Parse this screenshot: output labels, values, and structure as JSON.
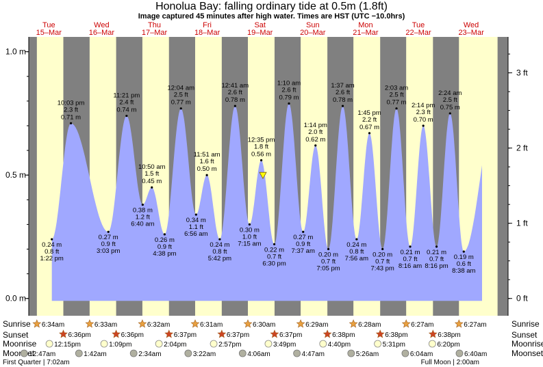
{
  "title": "Honolua Bay: falling  ordinary tide at 0.5m (1.8ft)",
  "subtitle": "Image captured 45 minutes after high water. Times are HST (UTC −10.0hrs)",
  "chart_data": {
    "type": "area",
    "title": "Honolua Bay: falling  ordinary tide at 0.5m (1.8ft)",
    "xlabel": "",
    "ylabel": "",
    "ylim": [
      -0.07,
      1.06
    ],
    "y_left_ticks": [
      {
        "value": 0.0,
        "label": "0.0 m"
      },
      {
        "value": 0.5,
        "label": "0.5 m"
      },
      {
        "value": 1.0,
        "label": "1.0 m"
      }
    ],
    "y_right_ticks": [
      {
        "value": 0,
        "label": "0 ft"
      },
      {
        "value": 1,
        "label": "1 ft"
      },
      {
        "value": 2,
        "label": "2 ft"
      },
      {
        "value": 3,
        "label": "3 ft"
      }
    ],
    "days": [
      {
        "dow": "Tue",
        "date": "15–Mar",
        "day": 0
      },
      {
        "dow": "Wed",
        "date": "16–Mar",
        "day": 1
      },
      {
        "dow": "Thu",
        "date": "17–Mar",
        "day": 2
      },
      {
        "dow": "Fri",
        "date": "18–Mar",
        "day": 3
      },
      {
        "dow": "Sat",
        "date": "19–Mar",
        "day": 4
      },
      {
        "dow": "Sun",
        "date": "20–Mar",
        "day": 5
      },
      {
        "dow": "Mon",
        "date": "21–Mar",
        "day": 6
      },
      {
        "dow": "Tue",
        "date": "22–Mar",
        "day": 7
      },
      {
        "dow": "Wed",
        "date": "23–Mar",
        "day": 8
      }
    ],
    "tides": [
      {
        "day": 0,
        "time": "1:22 pm",
        "m": "0.24 m",
        "ft": "0.8 ft",
        "type": "low"
      },
      {
        "day": 0,
        "time": "10:03 pm",
        "m": "0.71 m",
        "ft": "2.3 ft",
        "type": "high"
      },
      {
        "day": 1,
        "time": "3:03 pm",
        "m": "0.27 m",
        "ft": "0.9 ft",
        "type": "low"
      },
      {
        "day": 1,
        "time": "11:21 pm",
        "m": "0.74 m",
        "ft": "2.4 ft",
        "type": "high"
      },
      {
        "day": 2,
        "time": "6:40 am",
        "m": "0.38 m",
        "ft": "1.2 ft",
        "type": "low"
      },
      {
        "day": 2,
        "time": "10:50 am",
        "m": "0.45 m",
        "ft": "1.5 ft",
        "type": "high"
      },
      {
        "day": 2,
        "time": "4:38 pm",
        "m": "0.26 m",
        "ft": "0.9 ft",
        "type": "low"
      },
      {
        "day": 3,
        "time": "12:04 am",
        "m": "0.77 m",
        "ft": "2.5 ft",
        "type": "high"
      },
      {
        "day": 3,
        "time": "6:56 am",
        "m": "0.34 m",
        "ft": "1.1 ft",
        "type": "low"
      },
      {
        "day": 3,
        "time": "11:51 am",
        "m": "0.50 m",
        "ft": "1.6 ft",
        "type": "high"
      },
      {
        "day": 3,
        "time": "5:42 pm",
        "m": "0.24 m",
        "ft": "0.8 ft",
        "type": "low"
      },
      {
        "day": 4,
        "time": "12:41 am",
        "m": "0.78 m",
        "ft": "2.6 ft",
        "type": "high"
      },
      {
        "day": 4,
        "time": "7:15 am",
        "m": "0.30 m",
        "ft": "1.0 ft",
        "type": "low"
      },
      {
        "day": 4,
        "time": "12:35 pm",
        "m": "0.56 m",
        "ft": "1.8 ft",
        "type": "high"
      },
      {
        "day": 4,
        "time": "6:30 pm",
        "m": "0.22 m",
        "ft": "0.7 ft",
        "type": "low"
      },
      {
        "day": 5,
        "time": "1:10 am",
        "m": "0.79 m",
        "ft": "2.6 ft",
        "type": "high"
      },
      {
        "day": 5,
        "time": "7:37 am",
        "m": "0.27 m",
        "ft": "0.9 ft",
        "type": "low"
      },
      {
        "day": 5,
        "time": "1:14 pm",
        "m": "0.62 m",
        "ft": "2.0 ft",
        "type": "high"
      },
      {
        "day": 5,
        "time": "7:05 pm",
        "m": "0.20 m",
        "ft": "0.7 ft",
        "type": "low"
      },
      {
        "day": 6,
        "time": "1:37 am",
        "m": "0.78 m",
        "ft": "2.6 ft",
        "type": "high"
      },
      {
        "day": 6,
        "time": "7:56 am",
        "m": "0.24 m",
        "ft": "0.8 ft",
        "type": "low"
      },
      {
        "day": 6,
        "time": "1:45 pm",
        "m": "0.67 m",
        "ft": "2.2 ft",
        "type": "high"
      },
      {
        "day": 6,
        "time": "7:43 pm",
        "m": "0.20 m",
        "ft": "0.7 ft",
        "type": "low"
      },
      {
        "day": 7,
        "time": "2:03 am",
        "m": "0.77 m",
        "ft": "2.5 ft",
        "type": "high"
      },
      {
        "day": 7,
        "time": "8:16 am",
        "m": "0.21 m",
        "ft": "0.7 ft",
        "type": "low"
      },
      {
        "day": 7,
        "time": "2:14 pm",
        "m": "0.70 m",
        "ft": "2.3 ft",
        "type": "high"
      },
      {
        "day": 7,
        "time": "8:16 pm",
        "m": "0.21 m",
        "ft": "0.7 ft",
        "type": "low"
      },
      {
        "day": 8,
        "time": "2:24 am",
        "m": "0.75 m",
        "ft": "2.5 ft",
        "type": "high"
      },
      {
        "day": 8,
        "time": "8:38 am",
        "m": "0.19 m",
        "ft": "0.6 ft",
        "type": "low"
      }
    ],
    "current_marker": {
      "day": 4,
      "time": "1:20 pm",
      "m": 0.5,
      "label": "falling ordinary tide at 0.5m (1.8ft)"
    },
    "sunrise": [
      "6:34am",
      "6:33am",
      "6:32am",
      "6:31am",
      "6:30am",
      "6:29am",
      "6:28am",
      "6:27am",
      "6:27am"
    ],
    "sunset": [
      "6:36pm",
      "6:36pm",
      "6:37pm",
      "6:37pm",
      "6:37pm",
      "6:38pm",
      "6:38pm",
      "6:38pm"
    ],
    "moonrise": [
      {
        "day": 0,
        "time": "12:15pm"
      },
      {
        "day": 1,
        "time": "1:09pm"
      },
      {
        "day": 2,
        "time": "2:04pm"
      },
      {
        "day": 3,
        "time": "2:57pm"
      },
      {
        "day": 4,
        "time": "3:49pm"
      },
      {
        "day": 5,
        "time": "4:40pm"
      },
      {
        "day": 6,
        "time": "5:31pm"
      },
      {
        "day": 7,
        "time": "6:20pm"
      }
    ],
    "moonset": [
      {
        "day": 0,
        "time": "12:47am"
      },
      {
        "day": 1,
        "time": "1:42am"
      },
      {
        "day": 2,
        "time": "2:34am"
      },
      {
        "day": 3,
        "time": "3:22am"
      },
      {
        "day": 4,
        "time": "4:06am"
      },
      {
        "day": 5,
        "time": "4:47am"
      },
      {
        "day": 6,
        "time": "5:26am"
      },
      {
        "day": 7,
        "time": "6:04am"
      },
      {
        "day": 8,
        "time": "6:40am"
      }
    ],
    "moon_phases": [
      {
        "label": "First Quarter | 7:02am",
        "align": "left"
      },
      {
        "label": "Full Moon | 2:00am",
        "align": "right"
      }
    ],
    "row_labels": {
      "sunrise": "Sunrise",
      "sunset": "Sunset",
      "moonrise": "Moonrise",
      "moonset": "Moonset"
    },
    "colors": {
      "night": "#808080",
      "day": "#ffffcc",
      "tide": "#a0a8ff",
      "day_label": "#cc0000",
      "sun": "#e8a040",
      "sunset_star": "#cc4422",
      "moonrise": "#ffffcc",
      "moonset": "#b0b0a0",
      "marker": "#ffff00"
    }
  }
}
